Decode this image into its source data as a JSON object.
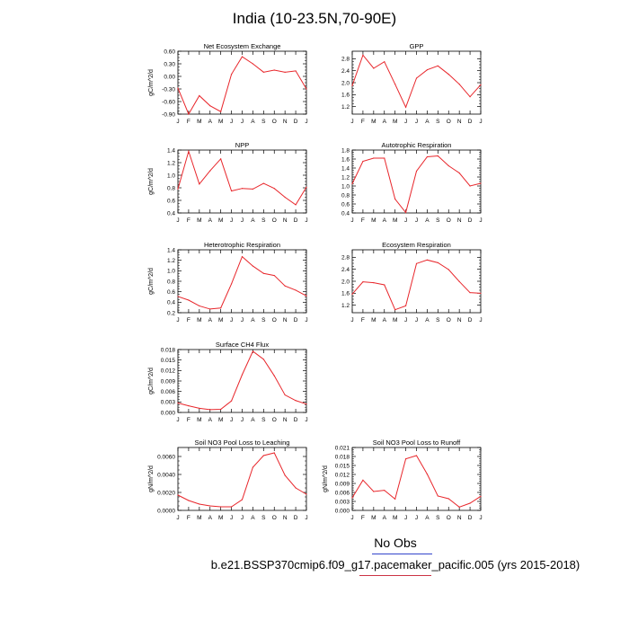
{
  "page": {
    "title": "India (10-23.5N,70-90E)",
    "legend_label": "No Obs",
    "case_label": "b.e21.BSSP370cmip6.f09_g17.pacemaker_pacific.005 (yrs 2015-2018)",
    "line_color": "#e8262b"
  },
  "chart_data": [
    {
      "type": "line",
      "title": "Net Ecosystem Exchange",
      "ylabel": "gC/m^2/d",
      "x": [
        "J",
        "F",
        "M",
        "A",
        "M",
        "J",
        "J",
        "A",
        "S",
        "O",
        "N",
        "D",
        "J"
      ],
      "yticks": [
        "0.60",
        "0.30",
        "0.00",
        "-0.30",
        "-0.60",
        "-0.90"
      ],
      "ylim": [
        -0.9,
        0.6
      ],
      "values": [
        -0.28,
        -0.9,
        -0.46,
        -0.7,
        -0.84,
        0.05,
        0.47,
        0.3,
        0.1,
        0.15,
        0.1,
        0.13,
        -0.3
      ]
    },
    {
      "type": "line",
      "title": "GPP",
      "ylabel": "",
      "x": [
        "J",
        "F",
        "M",
        "A",
        "M",
        "J",
        "J",
        "A",
        "S",
        "O",
        "N",
        "D",
        "J"
      ],
      "yticks": [
        "2.8",
        "2.4",
        "2.0",
        "1.6",
        "1.2"
      ],
      "ylim": [
        0.95,
        3.05
      ],
      "values": [
        1.9,
        2.92,
        2.48,
        2.7,
        1.95,
        1.18,
        2.15,
        2.43,
        2.56,
        2.28,
        1.95,
        1.53,
        1.93
      ]
    },
    {
      "type": "line",
      "title": "NPP",
      "ylabel": "gC/m^2/d",
      "x": [
        "J",
        "F",
        "M",
        "A",
        "M",
        "J",
        "J",
        "A",
        "S",
        "O",
        "N",
        "D",
        "J"
      ],
      "yticks": [
        "1.4",
        "1.2",
        "1.0",
        "0.8",
        "0.6",
        "0.4"
      ],
      "ylim": [
        0.4,
        1.4
      ],
      "values": [
        0.78,
        1.38,
        0.86,
        1.07,
        1.26,
        0.75,
        0.79,
        0.78,
        0.87,
        0.79,
        0.65,
        0.53,
        0.81
      ]
    },
    {
      "type": "line",
      "title": "Autotrophic Respiration",
      "ylabel": "",
      "x": [
        "J",
        "F",
        "M",
        "A",
        "M",
        "J",
        "J",
        "A",
        "S",
        "O",
        "N",
        "D",
        "J"
      ],
      "yticks": [
        "1.8",
        "1.6",
        "1.4",
        "1.2",
        "1.0",
        "0.8",
        "0.6",
        "0.4"
      ],
      "ylim": [
        0.4,
        1.8
      ],
      "values": [
        1.05,
        1.55,
        1.62,
        1.62,
        0.71,
        0.41,
        1.33,
        1.65,
        1.67,
        1.45,
        1.29,
        1.0,
        1.06
      ]
    },
    {
      "type": "line",
      "title": "Heterotrophic Respiration",
      "ylabel": "gC/m^2/d",
      "x": [
        "J",
        "F",
        "M",
        "A",
        "M",
        "J",
        "J",
        "A",
        "S",
        "O",
        "N",
        "D",
        "J"
      ],
      "yticks": [
        "1.4",
        "1.2",
        "1.0",
        "0.8",
        "0.6",
        "0.4",
        "0.2"
      ],
      "ylim": [
        0.2,
        1.4
      ],
      "values": [
        0.51,
        0.44,
        0.33,
        0.27,
        0.29,
        0.75,
        1.27,
        1.09,
        0.95,
        0.91,
        0.71,
        0.63,
        0.52
      ]
    },
    {
      "type": "line",
      "title": "Ecosystem Respiration",
      "ylabel": "",
      "x": [
        "J",
        "F",
        "M",
        "A",
        "M",
        "J",
        "J",
        "A",
        "S",
        "O",
        "N",
        "D",
        "J"
      ],
      "yticks": [
        "2.8",
        "2.4",
        "2.0",
        "1.6",
        "1.2"
      ],
      "ylim": [
        0.95,
        3.05
      ],
      "values": [
        1.57,
        1.98,
        1.95,
        1.88,
        1.05,
        1.18,
        2.59,
        2.71,
        2.62,
        2.39,
        1.99,
        1.62,
        1.6
      ]
    },
    {
      "type": "line",
      "title": "Surface CH4 Flux",
      "ylabel": "gC/m^2/d",
      "x": [
        "J",
        "F",
        "M",
        "A",
        "M",
        "J",
        "J",
        "A",
        "S",
        "O",
        "N",
        "D",
        "J"
      ],
      "yticks": [
        "0.018",
        "0.015",
        "0.012",
        "0.009",
        "0.006",
        "0.003",
        "0.000"
      ],
      "ylim": [
        0.0,
        0.018
      ],
      "values": [
        0.0027,
        0.0019,
        0.0012,
        0.0008,
        0.0009,
        0.0033,
        0.0108,
        0.0175,
        0.0152,
        0.0105,
        0.005,
        0.0034,
        0.0024
      ]
    },
    {
      "type": "line",
      "title": "Soil NO3 Pool Loss to Leaching",
      "ylabel": "gN/m^2/d",
      "x": [
        "J",
        "F",
        "M",
        "A",
        "M",
        "J",
        "J",
        "A",
        "S",
        "O",
        "N",
        "D",
        "J"
      ],
      "yticks": [
        "0.0060",
        "0.0040",
        "0.0020",
        "0.0000"
      ],
      "ylim": [
        0.0,
        0.007
      ],
      "values": [
        0.0017,
        0.0011,
        0.0007,
        0.0005,
        0.0004,
        0.0004,
        0.0012,
        0.0048,
        0.0061,
        0.0064,
        0.0039,
        0.0025,
        0.0018
      ]
    },
    {
      "type": "line",
      "title": "Soil NO3 Pool Loss to Runoff",
      "ylabel": "gN/m^2/d",
      "x": [
        "J",
        "F",
        "M",
        "A",
        "M",
        "J",
        "J",
        "A",
        "S",
        "O",
        "N",
        "D",
        "J"
      ],
      "yticks": [
        "0.021",
        "0.018",
        "0.015",
        "0.012",
        "0.009",
        "0.006",
        "0.003",
        "0.000"
      ],
      "ylim": [
        0.0,
        0.021
      ],
      "values": [
        0.0042,
        0.0101,
        0.0063,
        0.0067,
        0.0038,
        0.0172,
        0.0183,
        0.0121,
        0.0048,
        0.0039,
        0.0011,
        0.0024,
        0.0047
      ]
    }
  ]
}
